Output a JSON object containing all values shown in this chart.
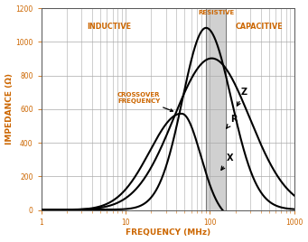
{
  "title": "",
  "xlabel": "FREQUENCY (MHz)",
  "ylabel": "IMPEDANCE (Ω)",
  "xlim": [
    1,
    1000
  ],
  "ylim": [
    0,
    1200
  ],
  "yticks": [
    0,
    200,
    400,
    600,
    800,
    1000,
    1200
  ],
  "background_color": "#ffffff",
  "plot_bg_color": "#ffffff",
  "grid_color": "#aaaaaa",
  "resistive_region_color": "#d0d0d0",
  "resistive_region_x1": 90,
  "resistive_region_x2": 155,
  "label_inductive": "INDUCTIVE",
  "label_capacitive": "CAPACITIVE",
  "label_resistive": "RESISTIVE",
  "label_crossover": "CROSSOVER\nFREQUENCY",
  "label_Z": "Z",
  "label_R": "R",
  "label_X": "X",
  "line_color": "#000000",
  "line_width": 1.5,
  "font_color_label": "#cc6600",
  "font_color_black": "#000000"
}
